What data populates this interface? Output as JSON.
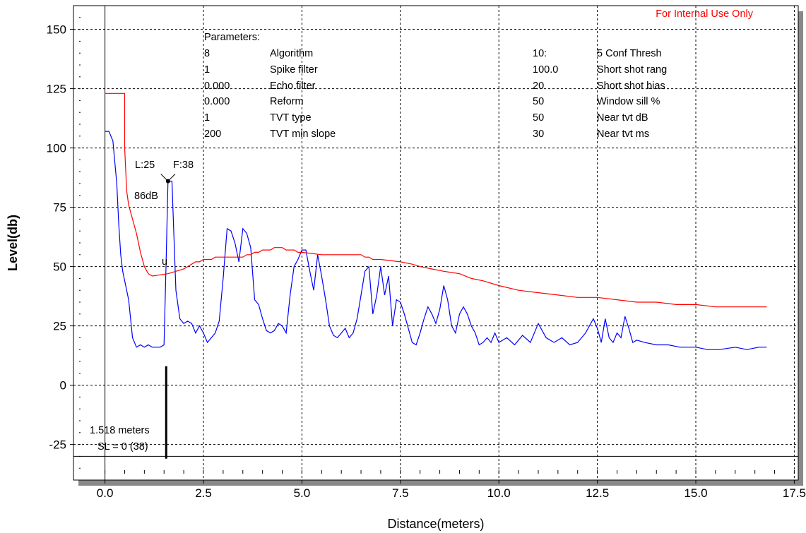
{
  "notice": {
    "text": "For Internal Use Only",
    "color": "#ff0000"
  },
  "colors": {
    "echo": "#0000ff",
    "tvt": "#ff0000",
    "grid": "#000000",
    "shadow": "#888888"
  },
  "parameters": {
    "heading": "Parameters:",
    "left": [
      {
        "value": "8",
        "name": "Algorithm"
      },
      {
        "value": "1",
        "name": "Spike filter"
      },
      {
        "value": "0.000",
        "name": "Echo filter"
      },
      {
        "value": "0.000",
        "name": "Reform"
      },
      {
        "value": "1",
        "name": "TVT type"
      },
      {
        "value": "200",
        "name": "TVT min slope"
      }
    ],
    "right": [
      {
        "value": "10:",
        "name": "5 Conf Thresh"
      },
      {
        "value": "100.0",
        "name": "Short shot rang"
      },
      {
        "value": "20",
        "name": "Short shot bias"
      },
      {
        "value": "50",
        "name": "Window sill %"
      },
      {
        "value": "50",
        "name": "Near tvt dB"
      },
      {
        "value": "30",
        "name": "Near tvt ms"
      }
    ]
  },
  "annotations": {
    "echo_left": "L:25",
    "echo_front": "F:38",
    "echo_level": "86dB",
    "window_mark": "u",
    "distance": "1.518 meters",
    "sl": "SL = 0 (38)"
  },
  "chart_data": {
    "type": "line",
    "title": "",
    "xlabel": "Distance(meters)",
    "ylabel": "Level(db)",
    "xlim": [
      -0.8,
      17.6
    ],
    "ylim": [
      -40,
      160
    ],
    "xticks": [
      0.0,
      2.5,
      5.0,
      7.5,
      10.0,
      12.5,
      15.0,
      17.5
    ],
    "xtick_labels": [
      "0.0",
      "2.5",
      "5.0",
      "7.5",
      "10.0",
      "12.5",
      "15.0",
      "17.5"
    ],
    "yticks": [
      -25,
      0,
      25,
      50,
      75,
      100,
      125,
      150
    ],
    "ytick_labels": [
      "-25",
      "0",
      "25",
      "50",
      "75",
      "100",
      "125",
      "150"
    ],
    "grid": true,
    "series": [
      {
        "x": [
          0.0,
          0.1,
          0.2,
          0.3,
          0.35,
          0.4,
          0.45,
          0.5,
          0.6,
          0.7,
          0.8,
          0.9,
          1.0,
          1.1,
          1.2,
          1.3,
          1.4,
          1.5,
          1.55,
          1.6,
          1.7,
          1.8,
          1.9,
          2.0,
          2.1,
          2.2,
          2.3,
          2.4,
          2.5,
          2.6,
          2.7,
          2.8,
          2.9,
          3.0,
          3.1,
          3.2,
          3.3,
          3.4,
          3.5,
          3.6,
          3.7,
          3.8,
          3.9,
          4.0,
          4.1,
          4.2,
          4.3,
          4.4,
          4.5,
          4.6,
          4.7,
          4.8,
          4.9,
          5.0,
          5.1,
          5.2,
          5.3,
          5.4,
          5.5,
          5.6,
          5.7,
          5.8,
          5.9,
          6.0,
          6.1,
          6.2,
          6.3,
          6.4,
          6.5,
          6.6,
          6.7,
          6.8,
          6.9,
          7.0,
          7.1,
          7.2,
          7.3,
          7.4,
          7.5,
          7.6,
          7.7,
          7.8,
          7.9,
          8.0,
          8.1,
          8.2,
          8.3,
          8.4,
          8.5,
          8.6,
          8.7,
          8.8,
          8.9,
          9.0,
          9.1,
          9.2,
          9.3,
          9.4,
          9.5,
          9.6,
          9.7,
          9.8,
          9.9,
          10.0,
          10.2,
          10.4,
          10.6,
          10.8,
          11.0,
          11.2,
          11.4,
          11.6,
          11.8,
          12.0,
          12.2,
          12.4,
          12.5,
          12.6,
          12.7,
          12.8,
          12.9,
          13.0,
          13.1,
          13.2,
          13.3,
          13.4,
          13.5,
          13.7,
          14.0,
          14.3,
          14.6,
          15.0,
          15.3,
          15.6,
          16.0,
          16.3,
          16.6,
          16.8
        ],
        "y": [
          107,
          107,
          103,
          85,
          68,
          55,
          48,
          44,
          36,
          20,
          16,
          17,
          16,
          17,
          16,
          16,
          16,
          17,
          50,
          86,
          86,
          40,
          28,
          26,
          27,
          26,
          22,
          25,
          22,
          18,
          20,
          22,
          27,
          45,
          66,
          65,
          60,
          52,
          66,
          64,
          58,
          36,
          34,
          28,
          23,
          22,
          23,
          26,
          25,
          22,
          38,
          50,
          53,
          57,
          57,
          48,
          40,
          55,
          46,
          36,
          25,
          21,
          20,
          22,
          24,
          20,
          22,
          28,
          38,
          48,
          50,
          30,
          38,
          50,
          38,
          46,
          25,
          36,
          35,
          30,
          24,
          18,
          17,
          22,
          28,
          33,
          30,
          26,
          32,
          42,
          36,
          25,
          22,
          30,
          33,
          30,
          25,
          22,
          17,
          18,
          20,
          18,
          22,
          18,
          20,
          17,
          21,
          18,
          26,
          20,
          18,
          20,
          17,
          18,
          22,
          28,
          24,
          18,
          28,
          20,
          18,
          22,
          20,
          29,
          24,
          18,
          19,
          18,
          17,
          17,
          16,
          16,
          15,
          15,
          16,
          15,
          16,
          16
        ]
      },
      {
        "x": [
          0.0,
          0.5,
          0.5,
          0.55,
          0.6,
          0.7,
          0.8,
          0.9,
          1.0,
          1.1,
          1.2,
          1.6,
          2.0,
          2.1,
          2.2,
          2.3,
          2.4,
          2.5,
          2.6,
          2.7,
          2.8,
          2.9,
          3.0,
          3.5,
          3.6,
          3.7,
          3.8,
          3.9,
          4.0,
          4.1,
          4.2,
          4.3,
          4.4,
          4.5,
          4.6,
          4.7,
          4.8,
          4.9,
          5.0,
          5.5,
          6.0,
          6.5,
          6.6,
          6.7,
          6.8,
          7.0,
          7.5,
          7.8,
          8.0,
          8.3,
          8.6,
          9.0,
          9.3,
          9.6,
          10.0,
          10.5,
          11.0,
          11.5,
          12.0,
          12.5,
          13.0,
          13.5,
          14.0,
          14.5,
          15.0,
          15.5,
          16.0,
          16.5,
          16.8
        ],
        "y": [
          123,
          123,
          100,
          82,
          76,
          70,
          64,
          56,
          50,
          47,
          46,
          47,
          49,
          50,
          51,
          52,
          52,
          53,
          53,
          53,
          54,
          54,
          54,
          54,
          55,
          55,
          56,
          56,
          57,
          57,
          57,
          58,
          58,
          58,
          57,
          57,
          57,
          56,
          56,
          55,
          55,
          55,
          54,
          54,
          53,
          53,
          52,
          51,
          50,
          49,
          48,
          47,
          45,
          44,
          42,
          40,
          39,
          38,
          37,
          37,
          36,
          35,
          35,
          34,
          34,
          33,
          33,
          33,
          33
        ]
      }
    ],
    "markers": {
      "tvt_window_x": 1.55,
      "echo_front_x": 1.6,
      "echo_front_db": 86,
      "distance_m": 1.518,
      "sl_db": 0
    }
  }
}
